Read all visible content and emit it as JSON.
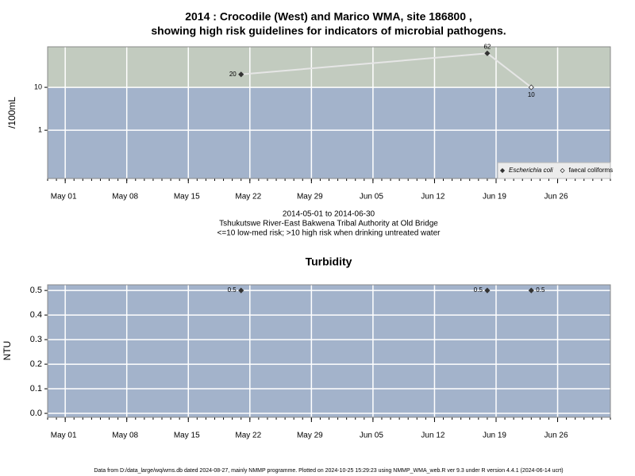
{
  "chart_data": [
    {
      "type": "line",
      "title": "2014 : Crocodile (West) and Marico WMA, site 186800 ,",
      "subtitle": "showing high risk guidelines for indicators of microbial pathogens.",
      "ylabel": "/100mL",
      "log_scale": true,
      "ylim": [
        0.075,
        88
      ],
      "yticks": [
        1,
        10
      ],
      "risk_threshold": 10,
      "band_colors": {
        "low": "#a3b3cb",
        "high": "#c2cbbf"
      },
      "xlim": [
        "2014-04-29",
        "2014-07-02"
      ],
      "xticks": [
        {
          "value": "2014-05-01",
          "label": "May 01"
        },
        {
          "value": "2014-05-08",
          "label": "May 08"
        },
        {
          "value": "2014-05-15",
          "label": "May 15"
        },
        {
          "value": "2014-05-22",
          "label": "May 22"
        },
        {
          "value": "2014-05-29",
          "label": "May 29"
        },
        {
          "value": "2014-06-05",
          "label": "Jun 05"
        },
        {
          "value": "2014-06-12",
          "label": "Jun 12"
        },
        {
          "value": "2014-06-19",
          "label": "Jun 19"
        },
        {
          "value": "2014-06-26",
          "label": "Jun 26"
        }
      ],
      "grid": true,
      "legend": "bottom right",
      "series": [
        {
          "name": "Escherichia coli",
          "color": "#333333",
          "marker": "filled",
          "x": [
            "2014-05-21",
            "2014-06-18"
          ],
          "values": [
            20,
            62
          ]
        },
        {
          "name": "faecal coliforms",
          "color": "#333333",
          "marker": "open",
          "x": [
            "2014-06-23"
          ],
          "values": [
            10
          ]
        }
      ],
      "notes": [
        "2014-05-01 to 2014-06-30",
        "Tshukutswe River-East Bakwena Tribal Authority at Old Bridge",
        "<=10 low-med risk; >10 high risk when drinking untreated water"
      ]
    },
    {
      "type": "scatter",
      "title": "Turbidity",
      "ylabel": "NTU",
      "ylim": [
        -0.016,
        0.523
      ],
      "yticks": [
        {
          "value": 0,
          "label": "0.0"
        },
        0.1,
        0.2,
        0.3,
        0.4,
        0.5
      ],
      "band_colors": {
        "low": "#a3b3cb"
      },
      "xlim": [
        "2014-04-29",
        "2014-07-02"
      ],
      "xticks": [
        {
          "value": "2014-05-01",
          "label": "May 01"
        },
        {
          "value": "2014-05-08",
          "label": "May 08"
        },
        {
          "value": "2014-05-15",
          "label": "May 15"
        },
        {
          "value": "2014-05-22",
          "label": "May 22"
        },
        {
          "value": "2014-05-29",
          "label": "May 29"
        },
        {
          "value": "2014-06-05",
          "label": "Jun 05"
        },
        {
          "value": "2014-06-12",
          "label": "Jun 12"
        },
        {
          "value": "2014-06-19",
          "label": "Jun 19"
        },
        {
          "value": "2014-06-26",
          "label": "Jun 26"
        }
      ],
      "grid": true,
      "series": [
        {
          "name": "Turbidity",
          "color": "#333333",
          "marker": "filled",
          "x": [
            "2014-05-21",
            "2014-06-18",
            "2014-06-23"
          ],
          "values": [
            0.5,
            0.5,
            0.5
          ]
        }
      ]
    }
  ],
  "footer": "Data from D:/data_large/wq/wms.db dated 2024-08-27, mainly NMMP programme. Plotted on 2024-10-25 15:29:23 using NMMP_WMA_web.R ver 9.3 under R version 4.4.1 (2024-06-14 ucrt)"
}
